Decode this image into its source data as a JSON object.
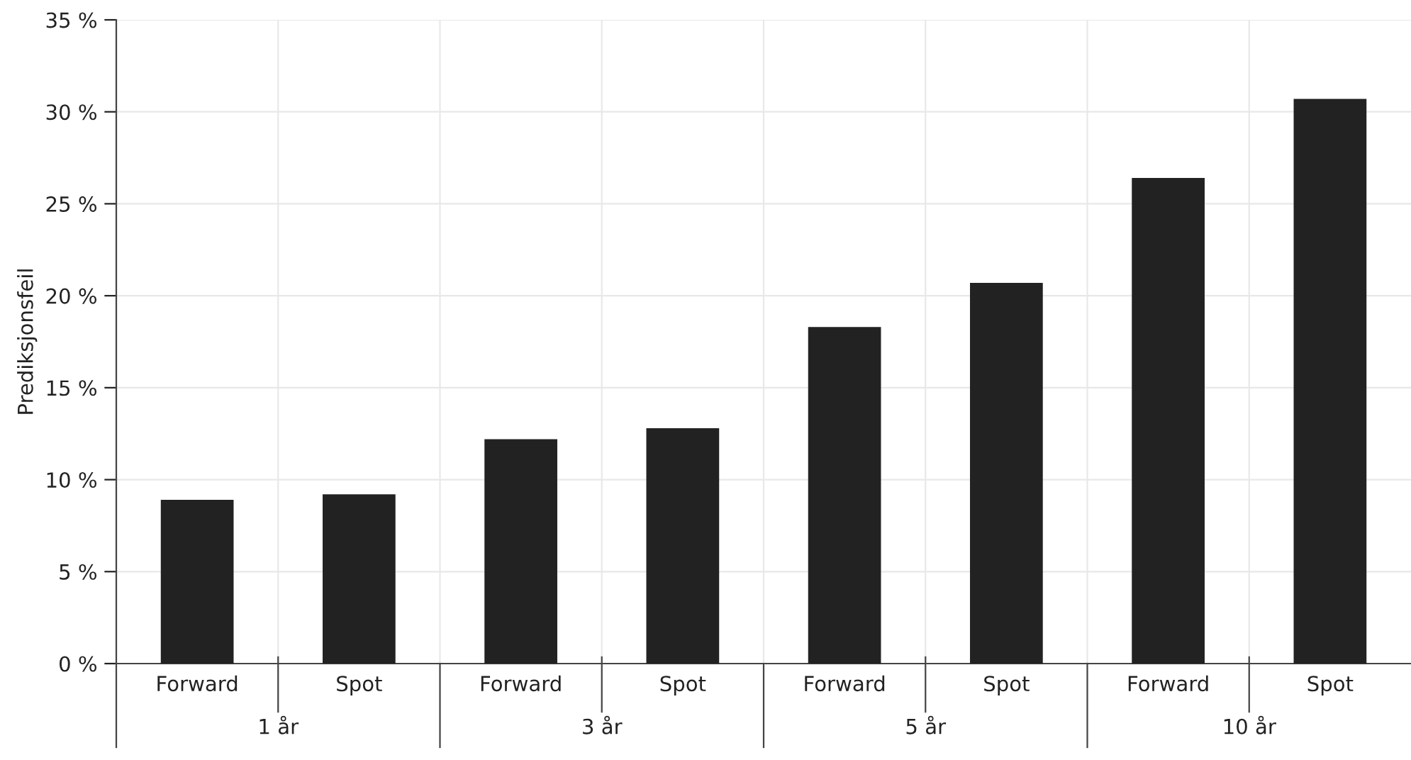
{
  "chart_data": {
    "type": "bar",
    "ylabel": "Prediksjonsfeil",
    "categories": [
      "Forward",
      "Spot",
      "Forward",
      "Spot",
      "Forward",
      "Spot",
      "Forward",
      "Spot"
    ],
    "values": [
      8.9,
      9.2,
      12.2,
      12.8,
      18.3,
      20.7,
      26.4,
      30.7
    ],
    "color": "#222222",
    "ylim": [
      0,
      35
    ],
    "yticks": [
      {
        "value": 0,
        "label": "0 %"
      },
      {
        "value": 5,
        "label": "5 %"
      },
      {
        "value": 10,
        "label": "10 %"
      },
      {
        "value": 15,
        "label": "15 %"
      },
      {
        "value": 20,
        "label": "20 %"
      },
      {
        "value": 25,
        "label": "25 %"
      },
      {
        "value": 30,
        "label": "30 %"
      },
      {
        "value": 35,
        "label": "35 %"
      }
    ],
    "grid": true,
    "annotations": [
      "1 år",
      "3 år",
      "5 år",
      "10 år"
    ]
  }
}
